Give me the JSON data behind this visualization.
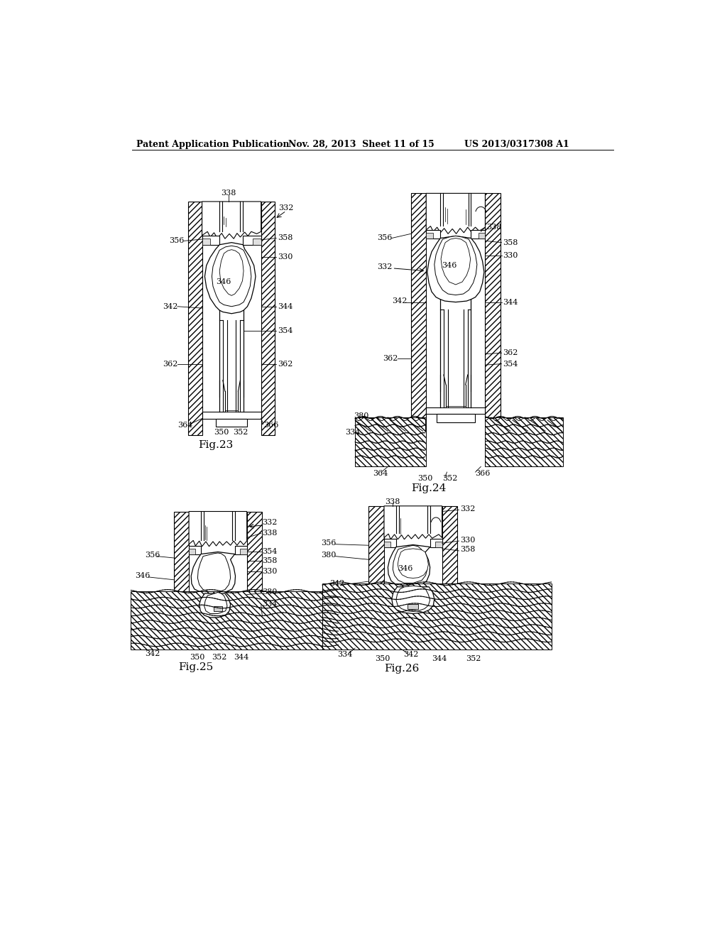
{
  "bg_color": "#ffffff",
  "header_left": "Patent Application Publication",
  "header_mid": "Nov. 28, 2013  Sheet 11 of 15",
  "header_right": "US 2013/0317308 A1",
  "line_color": "#000000",
  "text_color": "#000000",
  "font_size_header": 9,
  "font_size_fig": 11,
  "font_size_label": 8,
  "fig23_label": "Fig.23",
  "fig24_label": "Fig.24",
  "fig25_label": "Fig.25",
  "fig26_label": "Fig.26"
}
